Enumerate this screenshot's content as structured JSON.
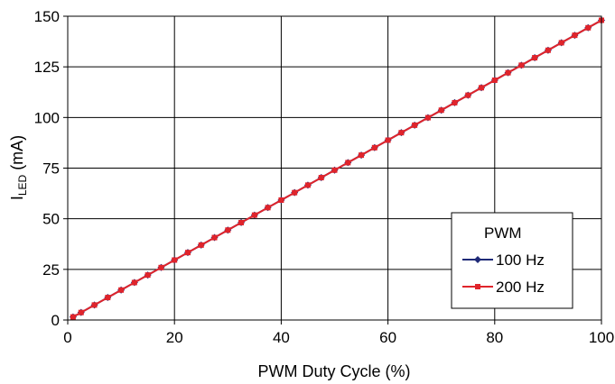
{
  "chart_data": {
    "type": "line",
    "xlabel": "PWM Duty Cycle (%)",
    "ylabel_main": "I",
    "ylabel_sub": "LED",
    "ylabel_unit": " (mA)",
    "xlim": [
      0,
      100
    ],
    "ylim": [
      0,
      150
    ],
    "xticks": [
      0,
      20,
      40,
      60,
      80,
      100
    ],
    "yticks": [
      0,
      25,
      50,
      75,
      100,
      125,
      150
    ],
    "grid": true,
    "legend": {
      "title": "PWM",
      "position": "bottom-right",
      "entries": [
        "100 Hz",
        "200 Hz"
      ]
    },
    "series": [
      {
        "name": "100 Hz",
        "color": "#1f2a78",
        "marker": "diamond",
        "x": [
          1,
          2.5,
          5,
          7.5,
          10,
          12.5,
          15,
          17.5,
          20,
          22.5,
          25,
          27.5,
          30,
          32.5,
          35,
          37.5,
          40,
          42.5,
          45,
          47.5,
          50,
          52.5,
          55,
          57.5,
          60,
          62.5,
          65,
          67.5,
          70,
          72.5,
          75,
          77.5,
          80,
          82.5,
          85,
          87.5,
          90,
          92.5,
          95,
          97.5,
          100
        ],
        "y": [
          1.5,
          3.7,
          7.4,
          11.1,
          14.8,
          18.5,
          22.2,
          25.9,
          29.6,
          33.3,
          37.0,
          40.7,
          44.4,
          48.1,
          51.8,
          55.5,
          59.2,
          62.9,
          66.6,
          70.3,
          74.0,
          77.7,
          81.4,
          85.1,
          88.8,
          92.5,
          96.2,
          99.9,
          103.6,
          107.3,
          111.0,
          114.7,
          118.4,
          122.1,
          125.8,
          129.5,
          133.2,
          136.9,
          140.6,
          144.3,
          148
        ]
      },
      {
        "name": "200 Hz",
        "color": "#e0242b",
        "marker": "square",
        "x": [
          1,
          2.5,
          5,
          7.5,
          10,
          12.5,
          15,
          17.5,
          20,
          22.5,
          25,
          27.5,
          30,
          32.5,
          35,
          37.5,
          40,
          42.5,
          45,
          47.5,
          50,
          52.5,
          55,
          57.5,
          60,
          62.5,
          65,
          67.5,
          70,
          72.5,
          75,
          77.5,
          80,
          82.5,
          85,
          87.5,
          90,
          92.5,
          95,
          97.5,
          100
        ],
        "y": [
          1.5,
          3.7,
          7.4,
          11.1,
          14.8,
          18.5,
          22.2,
          25.9,
          29.6,
          33.3,
          37.0,
          40.7,
          44.4,
          48.1,
          51.8,
          55.5,
          59.2,
          62.9,
          66.6,
          70.3,
          74.0,
          77.7,
          81.4,
          85.1,
          88.8,
          92.5,
          96.2,
          99.9,
          103.6,
          107.3,
          111.0,
          114.7,
          118.4,
          122.1,
          125.8,
          129.5,
          133.2,
          136.9,
          140.6,
          144.3,
          148
        ]
      }
    ]
  }
}
